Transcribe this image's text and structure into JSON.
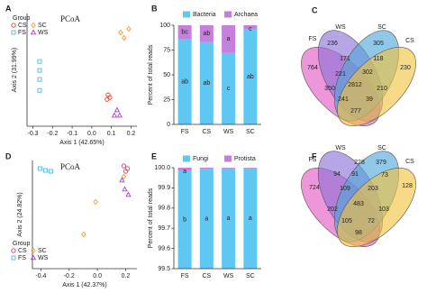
{
  "chart_data": [
    {
      "type": "scatter",
      "panel": "A",
      "title": "PCoA",
      "xlabel": "Axis 1 (42.65%)",
      "ylabel": "Axis 2 (31.99%)",
      "legend_title": "Group",
      "xlim": [
        -0.33,
        0.23
      ],
      "xticks": [
        -0.3,
        -0.2,
        -0.1,
        {
          "value": 0,
          "label": "0.0"
        },
        0.1,
        0.2
      ],
      "ylim": [
        -0.3,
        0.3
      ],
      "series": [
        {
          "name": "CS",
          "color": "#e8452c",
          "marker": "circle",
          "x": [
            0.083,
            0.092,
            0.078
          ],
          "y": [
            -0.133,
            -0.147,
            -0.157
          ]
        },
        {
          "name": "SC",
          "color": "#f0a030",
          "marker": "diamond",
          "x": [
            0.147,
            0.165,
            0.188
          ],
          "y": [
            0.199,
            0.17,
            0.218
          ]
        },
        {
          "name": "FS",
          "color": "#4fb4e6",
          "marker": "square",
          "x": [
            -0.266,
            -0.266,
            -0.266,
            -0.266
          ],
          "y": [
            0.045,
            -0.003,
            -0.051,
            -0.109
          ]
        },
        {
          "name": "WS",
          "color": "#b23ad6",
          "marker": "triangle",
          "x": [
            0.129,
            0.142,
            0.115
          ],
          "y": [
            -0.214,
            -0.243,
            -0.243
          ]
        }
      ]
    },
    {
      "type": "bar",
      "panel": "B",
      "ylabel": "Percent of total reads",
      "categories": [
        "FS",
        "CS",
        "WS",
        "SC"
      ],
      "ylim": [
        0,
        100
      ],
      "yticks": [
        0,
        25,
        50,
        75,
        100
      ],
      "series": [
        {
          "name": "Bacteria",
          "color": "#5ec8f2",
          "values": [
            86,
            83,
            72,
            96
          ],
          "labels": [
            "ab",
            "ab",
            "c",
            "ab"
          ]
        },
        {
          "name": "Archaea",
          "color": "#c67fdc",
          "values": [
            14,
            17,
            28,
            4
          ],
          "labels": [
            "bc",
            "ab",
            "a",
            "c"
          ]
        }
      ]
    },
    {
      "type": "venn",
      "panel": "C",
      "sets": [
        {
          "name": "FS",
          "color": "#e455c4"
        },
        {
          "name": "WS",
          "color": "#8a6fd6"
        },
        {
          "name": "SC",
          "color": "#4fa7d9"
        },
        {
          "name": "CS",
          "color": "#f2c33d"
        }
      ],
      "regions": [
        236,
        305,
        764,
        171,
        118,
        230,
        221,
        302,
        350,
        2812,
        210,
        241,
        39,
        277
      ]
    },
    {
      "type": "scatter",
      "panel": "D",
      "title": "PCoA",
      "xlabel": "Axis 1 (42.37%)",
      "ylabel": "Axis 2 (24.82%)",
      "legend_title": "Group",
      "xlim": [
        -0.46,
        0.28
      ],
      "xticks": [
        -0.4,
        -0.2,
        {
          "value": 0,
          "label": "0.0"
        },
        0.2
      ],
      "ylim": [
        -0.3,
        0.3
      ],
      "series": [
        {
          "name": "CS",
          "color": "#e8326e",
          "marker": "circle",
          "x": [
            0.187,
            0.213,
            0.2
          ],
          "y": [
            0.27,
            0.255,
            0.24
          ]
        },
        {
          "name": "SC",
          "color": "#f0a030",
          "marker": "diamond",
          "x": [
            -0.013,
            -0.097,
            0.187
          ],
          "y": [
            0.07,
            -0.11,
            0.21
          ]
        },
        {
          "name": "FS",
          "color": "#4fb4e6",
          "marker": "square",
          "x": [
            -0.406,
            -0.368,
            -0.329
          ],
          "y": [
            0.255,
            0.245,
            0.24
          ]
        },
        {
          "name": "WS",
          "color": "#b23ad6",
          "marker": "triangle",
          "x": [
            0.174,
            0.194,
            0.219
          ],
          "y": [
            0.19,
            0.14,
            0.11
          ]
        }
      ]
    },
    {
      "type": "bar",
      "panel": "E",
      "ylabel": "Percent of total reads",
      "categories": [
        "FS",
        "CS",
        "WS",
        "SC"
      ],
      "ylim": [
        99.5,
        100
      ],
      "yticks": [
        99.5,
        99.6,
        99.7,
        99.8,
        99.9,
        {
          "value": 100,
          "label": "100.0"
        }
      ],
      "series": [
        {
          "name": "Fungi",
          "color": "#5ec8f2",
          "values": [
            99.985,
            99.995,
            99.997,
            99.997
          ],
          "labels": [
            "b",
            "a",
            "a",
            "a"
          ]
        },
        {
          "name": "Protista",
          "color": "#c67fdc",
          "values": [
            0.015,
            0.005,
            0.003,
            0.003
          ],
          "labels": [
            "a",
            null,
            null,
            null
          ]
        }
      ]
    },
    {
      "type": "venn",
      "panel": "F",
      "sets": [
        {
          "name": "FS",
          "color": "#e455c4"
        },
        {
          "name": "WS",
          "color": "#8a6fd6"
        },
        {
          "name": "SC",
          "color": "#4fa7d9"
        },
        {
          "name": "CS",
          "color": "#f2c33d"
        }
      ],
      "regions": [
        228,
        379,
        94,
        73,
        724,
        91,
        128,
        109,
        203,
        202,
        483,
        103,
        105,
        72,
        98
      ]
    }
  ]
}
